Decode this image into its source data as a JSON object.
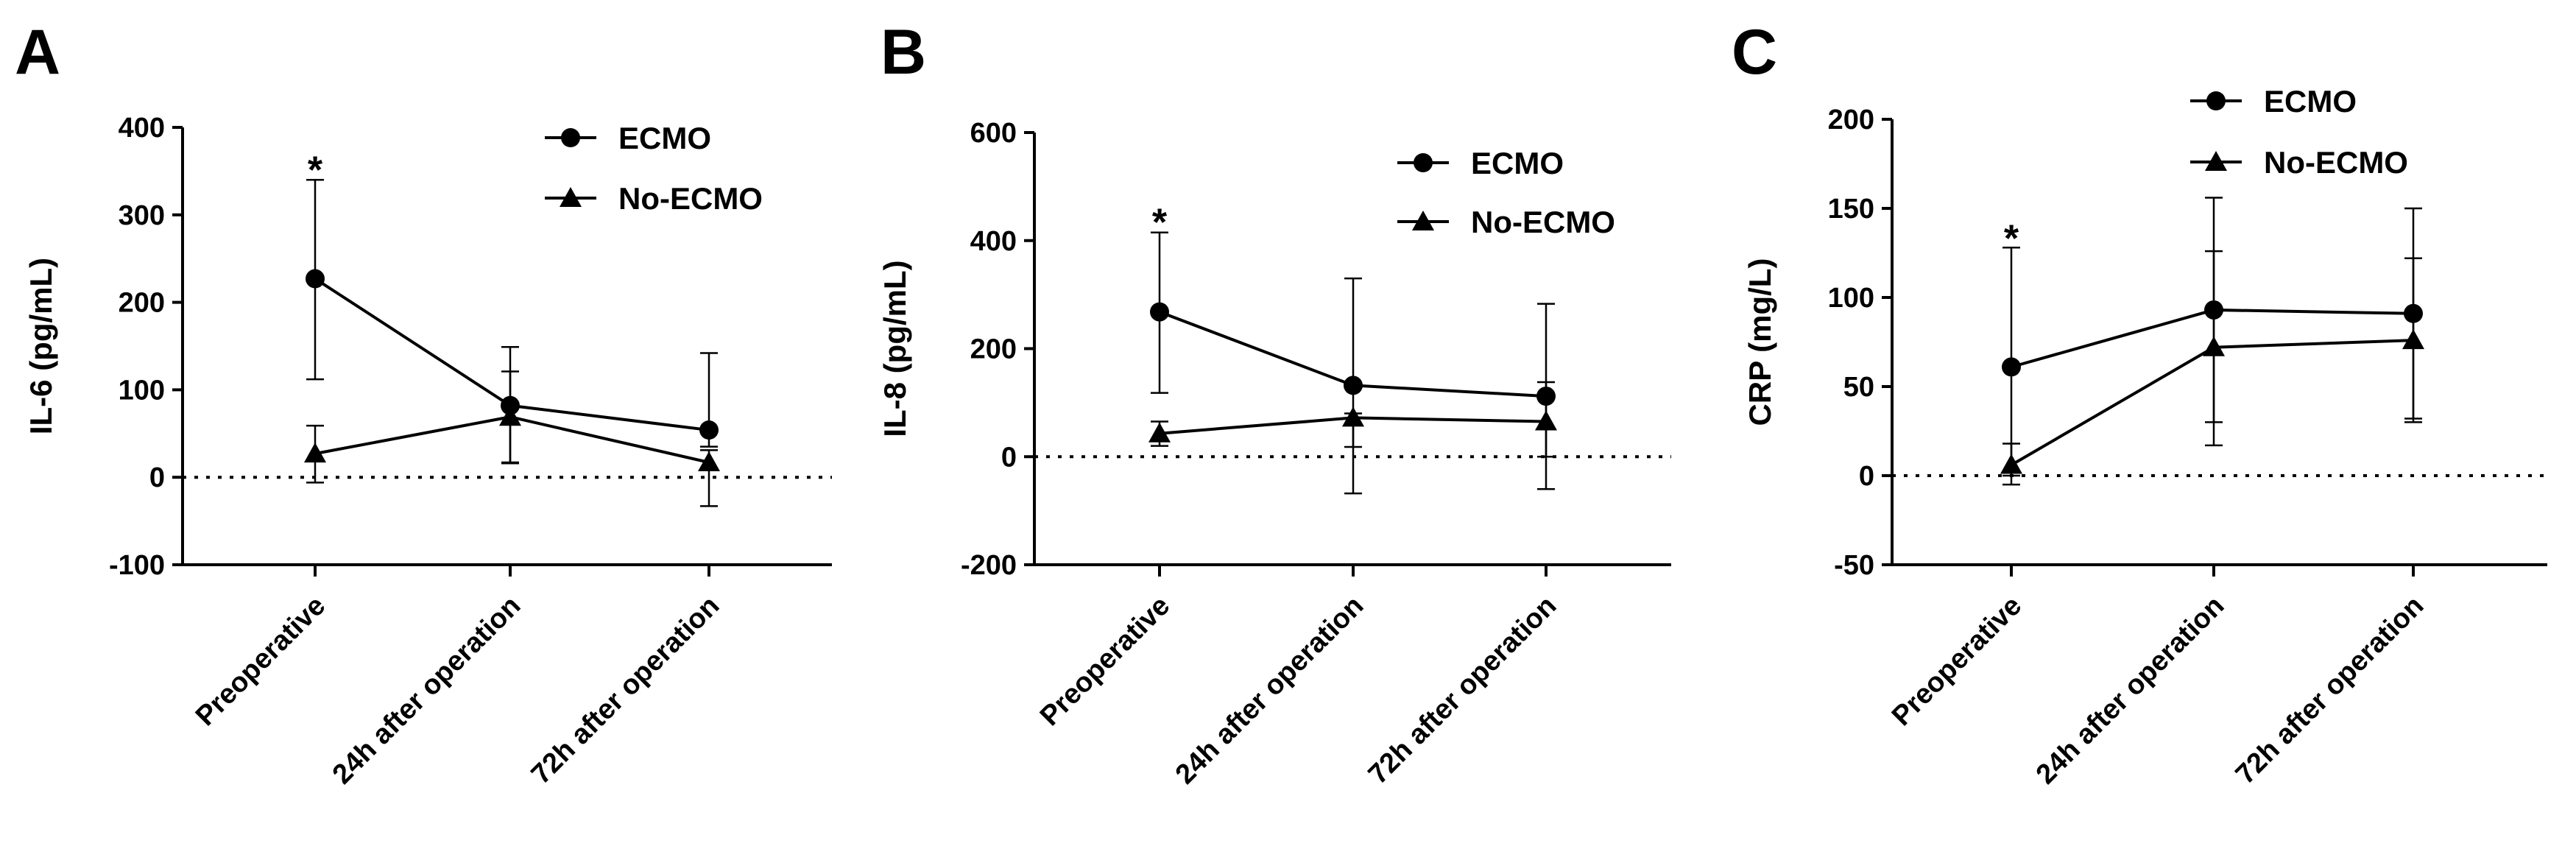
{
  "chart_data": [
    {
      "panel": "A",
      "type": "line",
      "ylabel": "IL-6 (pg/mL)",
      "ylim": [
        -100,
        400
      ],
      "yticks": [
        -100,
        0,
        100,
        200,
        300,
        400
      ],
      "tick_labels": [
        "-100",
        "0",
        "100",
        "200",
        "300",
        "400"
      ],
      "categories": [
        "Preoperative",
        "24h after operation",
        "72h after operation"
      ],
      "reference_line": 0,
      "annotations": [
        {
          "category": "Preoperative",
          "text": "*",
          "y": 355
        }
      ],
      "legend": [
        "ECMO",
        "No-ECMO"
      ],
      "series": [
        {
          "name": "ECMO",
          "marker": "circle",
          "values": [
            227,
            82,
            54
          ],
          "err_upper": [
            340,
            149,
            142
          ],
          "err_lower": [
            112,
            16,
            35
          ]
        },
        {
          "name": "No-ECMO",
          "marker": "triangle",
          "values": [
            27,
            69,
            17
          ],
          "err_upper": [
            59,
            121,
            31
          ],
          "err_lower": [
            -6,
            17,
            -33
          ]
        }
      ]
    },
    {
      "panel": "B",
      "type": "line",
      "ylabel": "IL-8 (pg/mL)",
      "ylim": [
        -200,
        600
      ],
      "yticks": [
        -200,
        0,
        200,
        400,
        600
      ],
      "tick_labels": [
        "-200",
        "0",
        "200",
        "400",
        "600"
      ],
      "categories": [
        "Preoperative",
        "24h after operation",
        "72h after operation"
      ],
      "reference_line": 0,
      "annotations": [
        {
          "category": "Preoperative",
          "text": "*",
          "y": 440
        }
      ],
      "legend": [
        "ECMO",
        "No-ECMO"
      ],
      "series": [
        {
          "name": "ECMO",
          "marker": "circle",
          "values": [
            268,
            132,
            112
          ],
          "err_upper": [
            415,
            330,
            283
          ],
          "err_lower": [
            118,
            18,
            0
          ]
        },
        {
          "name": "No-ECMO",
          "marker": "triangle",
          "values": [
            43,
            72,
            65
          ],
          "err_upper": [
            65,
            80,
            138
          ],
          "err_lower": [
            20,
            -68,
            -60
          ]
        }
      ]
    },
    {
      "panel": "C",
      "type": "line",
      "ylabel": "CRP (mg/L)",
      "ylim": [
        -50,
        200
      ],
      "yticks": [
        -50,
        0,
        50,
        100,
        150,
        200
      ],
      "tick_labels": [
        "-50",
        "0",
        "50",
        "100",
        "150",
        "200"
      ],
      "categories": [
        "Preoperative",
        "24h after operation",
        "72h after operation"
      ],
      "reference_line": 0,
      "annotations": [
        {
          "category": "Preoperative",
          "text": "*",
          "y": 135
        }
      ],
      "legend": [
        "ECMO",
        "No-ECMO"
      ],
      "series": [
        {
          "name": "ECMO",
          "marker": "circle",
          "values": [
            61,
            93,
            91
          ],
          "err_upper": [
            128,
            156,
            150
          ],
          "err_lower": [
            0,
            30,
            32
          ]
        },
        {
          "name": "No-ECMO",
          "marker": "triangle",
          "values": [
            6,
            72,
            76
          ],
          "err_upper": [
            18,
            126,
            122
          ],
          "err_lower": [
            -5,
            17,
            30
          ]
        }
      ]
    }
  ]
}
